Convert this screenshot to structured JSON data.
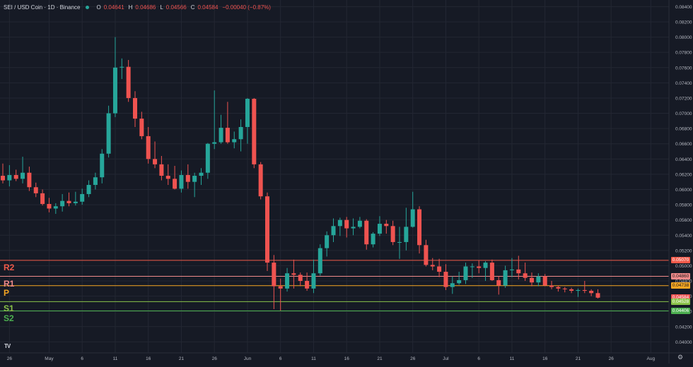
{
  "header": {
    "symbol": "SEI / USD Coin · 1D · Binance",
    "o_label": "O",
    "o_value": "0.04641",
    "h_label": "H",
    "h_value": "0.04686",
    "l_label": "L",
    "l_value": "0.04566",
    "c_label": "C",
    "c_value": "0.04584",
    "change": "−0.00040 (−0.87%)"
  },
  "levels": {
    "r2": {
      "label": "R2",
      "price": "0.05070",
      "value": 0.0507,
      "color": "#f05a4a"
    },
    "r1": {
      "label": "R1",
      "price": "0.04860",
      "value": 0.0486,
      "color": "#f08a8a"
    },
    "p": {
      "label": "P",
      "price": "0.04738",
      "value": 0.04738,
      "color": "#f5a623"
    },
    "s1": {
      "label": "S1",
      "price": "0.04528",
      "value": 0.04528,
      "color": "#8bc34a"
    },
    "s2": {
      "label": "S2",
      "price": "0.04406",
      "value": 0.04406,
      "color": "#4caf50"
    }
  },
  "current_price": {
    "price": "0.04584",
    "value": 0.04584,
    "color": "#ef5350"
  },
  "colors": {
    "up": "#26a69a",
    "down": "#ef5350",
    "background": "#161a25",
    "grid": "#232733",
    "axis_text": "#b2b5be"
  },
  "icons": {
    "logo": "tradingview-logo",
    "settings": "gear-icon"
  },
  "logo_text": "TV",
  "chart_data": {
    "type": "candlestick",
    "y_ticks": [
      "0.08400",
      "0.08200",
      "0.08000",
      "0.07800",
      "0.07600",
      "0.07400",
      "0.07200",
      "0.07000",
      "0.06800",
      "0.06600",
      "0.06400",
      "0.06200",
      "0.06000",
      "0.05800",
      "0.05600",
      "0.05400",
      "0.05200",
      "0.05000",
      "0.04800",
      "0.04600",
      "0.04400",
      "0.04200",
      "0.04000"
    ],
    "y_tick_values": [
      0.084,
      0.082,
      0.08,
      0.078,
      0.076,
      0.074,
      0.072,
      0.07,
      0.068,
      0.066,
      0.064,
      0.062,
      0.06,
      0.058,
      0.056,
      0.054,
      0.052,
      0.05,
      0.048,
      0.046,
      0.044,
      0.042,
      0.04
    ],
    "x_ticks": [
      "26",
      "May",
      "6",
      "11",
      "16",
      "21",
      "26",
      "Jun",
      "6",
      "11",
      "16",
      "21",
      "26",
      "Jul",
      "6",
      "11",
      "16",
      "21",
      "26",
      "Aug"
    ],
    "x_tick_index": [
      1,
      7,
      12,
      17,
      22,
      27,
      32,
      37,
      42,
      47,
      52,
      57,
      62,
      67,
      72,
      77,
      82,
      87,
      92,
      98
    ],
    "ylim": [
      0.03948,
      0.0845
    ],
    "candles": [
      {
        "o": 0.0618,
        "h": 0.0634,
        "l": 0.0608,
        "c": 0.0612
      },
      {
        "o": 0.0612,
        "h": 0.0632,
        "l": 0.0604,
        "c": 0.0619
      },
      {
        "o": 0.0619,
        "h": 0.0626,
        "l": 0.0611,
        "c": 0.0614
      },
      {
        "o": 0.0614,
        "h": 0.0643,
        "l": 0.0608,
        "c": 0.0622
      },
      {
        "o": 0.0622,
        "h": 0.063,
        "l": 0.0598,
        "c": 0.0603
      },
      {
        "o": 0.0603,
        "h": 0.0609,
        "l": 0.059,
        "c": 0.0595
      },
      {
        "o": 0.0595,
        "h": 0.06,
        "l": 0.0579,
        "c": 0.0581
      },
      {
        "o": 0.0581,
        "h": 0.0589,
        "l": 0.057,
        "c": 0.0575
      },
      {
        "o": 0.0575,
        "h": 0.0582,
        "l": 0.0568,
        "c": 0.0578
      },
      {
        "o": 0.0578,
        "h": 0.0594,
        "l": 0.0571,
        "c": 0.0585
      },
      {
        "o": 0.0585,
        "h": 0.0596,
        "l": 0.0578,
        "c": 0.0582
      },
      {
        "o": 0.0582,
        "h": 0.0597,
        "l": 0.0579,
        "c": 0.0584
      },
      {
        "o": 0.0584,
        "h": 0.0601,
        "l": 0.058,
        "c": 0.0594
      },
      {
        "o": 0.0594,
        "h": 0.0612,
        "l": 0.059,
        "c": 0.0606
      },
      {
        "o": 0.0606,
        "h": 0.0622,
        "l": 0.06,
        "c": 0.0616
      },
      {
        "o": 0.0616,
        "h": 0.0653,
        "l": 0.0608,
        "c": 0.0647
      },
      {
        "o": 0.0647,
        "h": 0.071,
        "l": 0.0642,
        "c": 0.07
      },
      {
        "o": 0.07,
        "h": 0.08,
        "l": 0.0695,
        "c": 0.076
      },
      {
        "o": 0.076,
        "h": 0.0772,
        "l": 0.0745,
        "c": 0.0761
      },
      {
        "o": 0.0761,
        "h": 0.077,
        "l": 0.0715,
        "c": 0.072
      },
      {
        "o": 0.072,
        "h": 0.0729,
        "l": 0.0682,
        "c": 0.0693
      },
      {
        "o": 0.0693,
        "h": 0.0702,
        "l": 0.0666,
        "c": 0.067
      },
      {
        "o": 0.067,
        "h": 0.0682,
        "l": 0.0634,
        "c": 0.064
      },
      {
        "o": 0.064,
        "h": 0.0663,
        "l": 0.0628,
        "c": 0.0633
      },
      {
        "o": 0.0633,
        "h": 0.0644,
        "l": 0.0612,
        "c": 0.0618
      },
      {
        "o": 0.0618,
        "h": 0.0633,
        "l": 0.0606,
        "c": 0.0614
      },
      {
        "o": 0.0614,
        "h": 0.0631,
        "l": 0.06,
        "c": 0.0601
      },
      {
        "o": 0.0601,
        "h": 0.0625,
        "l": 0.0596,
        "c": 0.0619
      },
      {
        "o": 0.0619,
        "h": 0.0633,
        "l": 0.0601,
        "c": 0.061
      },
      {
        "o": 0.061,
        "h": 0.0622,
        "l": 0.059,
        "c": 0.0618
      },
      {
        "o": 0.0618,
        "h": 0.0628,
        "l": 0.0606,
        "c": 0.0622
      },
      {
        "o": 0.0622,
        "h": 0.0661,
        "l": 0.0614,
        "c": 0.066
      },
      {
        "o": 0.066,
        "h": 0.073,
        "l": 0.0653,
        "c": 0.0662
      },
      {
        "o": 0.0662,
        "h": 0.0698,
        "l": 0.066,
        "c": 0.0681
      },
      {
        "o": 0.0681,
        "h": 0.0715,
        "l": 0.066,
        "c": 0.0662
      },
      {
        "o": 0.0662,
        "h": 0.0676,
        "l": 0.0654,
        "c": 0.0666
      },
      {
        "o": 0.0666,
        "h": 0.0692,
        "l": 0.065,
        "c": 0.0682
      },
      {
        "o": 0.0682,
        "h": 0.072,
        "l": 0.066,
        "c": 0.0719
      },
      {
        "o": 0.0719,
        "h": 0.072,
        "l": 0.0628,
        "c": 0.0633
      },
      {
        "o": 0.0633,
        "h": 0.0636,
        "l": 0.0587,
        "c": 0.0591
      },
      {
        "o": 0.0591,
        "h": 0.0596,
        "l": 0.0493,
        "c": 0.0504
      },
      {
        "o": 0.0504,
        "h": 0.0514,
        "l": 0.0443,
        "c": 0.0473
      },
      {
        "o": 0.0473,
        "h": 0.0483,
        "l": 0.0441,
        "c": 0.047
      },
      {
        "o": 0.047,
        "h": 0.0497,
        "l": 0.0466,
        "c": 0.049
      },
      {
        "o": 0.049,
        "h": 0.0508,
        "l": 0.047,
        "c": 0.0488
      },
      {
        "o": 0.0488,
        "h": 0.0491,
        "l": 0.0473,
        "c": 0.048
      },
      {
        "o": 0.048,
        "h": 0.0491,
        "l": 0.0467,
        "c": 0.047
      },
      {
        "o": 0.047,
        "h": 0.0508,
        "l": 0.0464,
        "c": 0.049
      },
      {
        "o": 0.049,
        "h": 0.0528,
        "l": 0.0487,
        "c": 0.0523
      },
      {
        "o": 0.0523,
        "h": 0.0545,
        "l": 0.0512,
        "c": 0.054
      },
      {
        "o": 0.054,
        "h": 0.0562,
        "l": 0.0531,
        "c": 0.0552
      },
      {
        "o": 0.0552,
        "h": 0.0563,
        "l": 0.0539,
        "c": 0.056
      },
      {
        "o": 0.056,
        "h": 0.0564,
        "l": 0.0537,
        "c": 0.0549
      },
      {
        "o": 0.0549,
        "h": 0.0562,
        "l": 0.054,
        "c": 0.0551
      },
      {
        "o": 0.0551,
        "h": 0.0564,
        "l": 0.0549,
        "c": 0.0559
      },
      {
        "o": 0.0559,
        "h": 0.0561,
        "l": 0.0521,
        "c": 0.0528
      },
      {
        "o": 0.0528,
        "h": 0.0544,
        "l": 0.0524,
        "c": 0.0542
      },
      {
        "o": 0.0542,
        "h": 0.0565,
        "l": 0.0539,
        "c": 0.0555
      },
      {
        "o": 0.0555,
        "h": 0.056,
        "l": 0.0542,
        "c": 0.0552
      },
      {
        "o": 0.0552,
        "h": 0.0559,
        "l": 0.0527,
        "c": 0.0531
      },
      {
        "o": 0.0531,
        "h": 0.0551,
        "l": 0.0509,
        "c": 0.0531
      },
      {
        "o": 0.0531,
        "h": 0.0576,
        "l": 0.052,
        "c": 0.0551
      },
      {
        "o": 0.0551,
        "h": 0.0597,
        "l": 0.055,
        "c": 0.0574
      },
      {
        "o": 0.0574,
        "h": 0.0578,
        "l": 0.0516,
        "c": 0.0527
      },
      {
        "o": 0.0527,
        "h": 0.0534,
        "l": 0.0499,
        "c": 0.0501
      },
      {
        "o": 0.0501,
        "h": 0.051,
        "l": 0.0494,
        "c": 0.0499
      },
      {
        "o": 0.0499,
        "h": 0.0509,
        "l": 0.0485,
        "c": 0.0492
      },
      {
        "o": 0.0492,
        "h": 0.0502,
        "l": 0.0468,
        "c": 0.0472
      },
      {
        "o": 0.0472,
        "h": 0.0486,
        "l": 0.0463,
        "c": 0.0477
      },
      {
        "o": 0.0477,
        "h": 0.0492,
        "l": 0.0475,
        "c": 0.0481
      },
      {
        "o": 0.0481,
        "h": 0.0504,
        "l": 0.0476,
        "c": 0.0499
      },
      {
        "o": 0.0499,
        "h": 0.0503,
        "l": 0.0484,
        "c": 0.0499
      },
      {
        "o": 0.0499,
        "h": 0.0507,
        "l": 0.049,
        "c": 0.0497
      },
      {
        "o": 0.0497,
        "h": 0.0506,
        "l": 0.048,
        "c": 0.0504
      },
      {
        "o": 0.0504,
        "h": 0.0508,
        "l": 0.048,
        "c": 0.0481
      },
      {
        "o": 0.0481,
        "h": 0.0486,
        "l": 0.0462,
        "c": 0.0474
      },
      {
        "o": 0.0474,
        "h": 0.05,
        "l": 0.0471,
        "c": 0.0494
      },
      {
        "o": 0.0494,
        "h": 0.051,
        "l": 0.0485,
        "c": 0.0495
      },
      {
        "o": 0.0495,
        "h": 0.0513,
        "l": 0.0482,
        "c": 0.049
      },
      {
        "o": 0.049,
        "h": 0.0504,
        "l": 0.048,
        "c": 0.0484
      },
      {
        "o": 0.0484,
        "h": 0.0491,
        "l": 0.0473,
        "c": 0.0478
      },
      {
        "o": 0.0478,
        "h": 0.049,
        "l": 0.0473,
        "c": 0.0486
      },
      {
        "o": 0.0486,
        "h": 0.0489,
        "l": 0.0473,
        "c": 0.0474
      },
      {
        "o": 0.0474,
        "h": 0.048,
        "l": 0.0469,
        "c": 0.0472
      },
      {
        "o": 0.0472,
        "h": 0.0474,
        "l": 0.0466,
        "c": 0.047
      },
      {
        "o": 0.047,
        "h": 0.0472,
        "l": 0.0465,
        "c": 0.0469
      },
      {
        "o": 0.0469,
        "h": 0.0471,
        "l": 0.0464,
        "c": 0.0467
      },
      {
        "o": 0.0467,
        "h": 0.047,
        "l": 0.0459,
        "c": 0.0468
      },
      {
        "o": 0.0468,
        "h": 0.048,
        "l": 0.0464,
        "c": 0.0467
      },
      {
        "o": 0.0467,
        "h": 0.0469,
        "l": 0.046,
        "c": 0.0464
      },
      {
        "o": 0.0464,
        "h": 0.0469,
        "l": 0.0457,
        "c": 0.0458
      }
    ]
  }
}
